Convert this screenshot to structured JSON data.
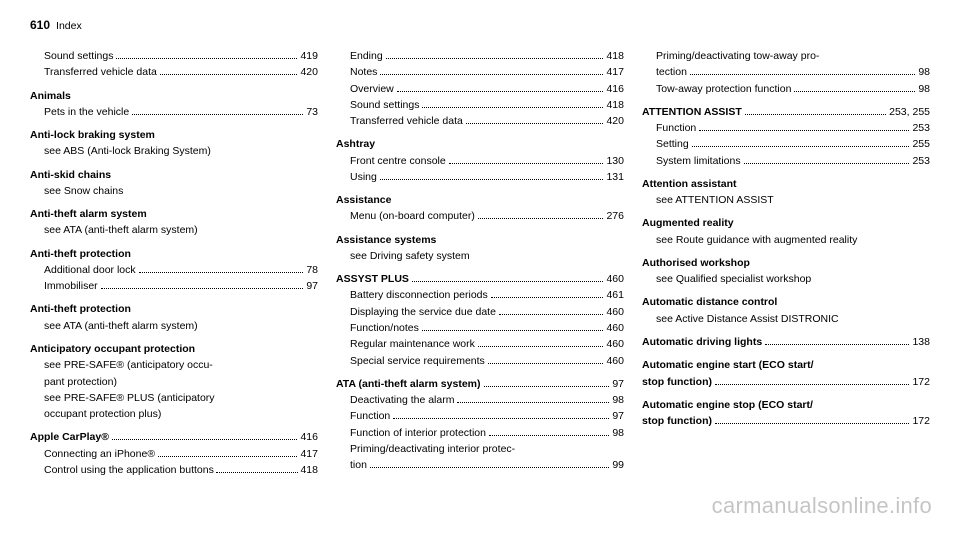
{
  "header": {
    "page_num": "610",
    "label": "Index"
  },
  "watermark": "carmanualsonline.info",
  "col1": [
    {
      "t": "line",
      "cls": "sub",
      "label": "Sound settings",
      "page": "419"
    },
    {
      "t": "line",
      "cls": "sub",
      "label": "Transferred vehicle data",
      "page": "420"
    },
    {
      "t": "spacer"
    },
    {
      "t": "head",
      "label": "Animals"
    },
    {
      "t": "line",
      "cls": "sub",
      "label": "Pets in the vehicle",
      "page": "73"
    },
    {
      "t": "spacer"
    },
    {
      "t": "head",
      "label": "Anti-lock braking system"
    },
    {
      "t": "see",
      "label": "see ABS (Anti-lock Braking System)"
    },
    {
      "t": "spacer"
    },
    {
      "t": "head",
      "label": "Anti-skid chains"
    },
    {
      "t": "see",
      "label": "see Snow chains"
    },
    {
      "t": "spacer"
    },
    {
      "t": "head",
      "label": "Anti-theft alarm system"
    },
    {
      "t": "see",
      "label": "see ATA (anti-theft alarm system)"
    },
    {
      "t": "spacer"
    },
    {
      "t": "head",
      "label": "Anti-theft protection"
    },
    {
      "t": "line",
      "cls": "sub",
      "label": "Additional door lock",
      "page": "78"
    },
    {
      "t": "line",
      "cls": "sub",
      "label": "Immobiliser",
      "page": "97"
    },
    {
      "t": "spacer"
    },
    {
      "t": "head",
      "label": "Anti-theft protection"
    },
    {
      "t": "see",
      "label": "see ATA (anti-theft alarm system)"
    },
    {
      "t": "spacer"
    },
    {
      "t": "head",
      "label": "Anticipatory occupant protection"
    },
    {
      "t": "see",
      "label": "see PRE-SAFE® (anticipatory occu-"
    },
    {
      "t": "see",
      "label": "pant protection)"
    },
    {
      "t": "see",
      "label": "see PRE-SAFE® PLUS (anticipatory"
    },
    {
      "t": "see",
      "label": "occupant protection plus)"
    },
    {
      "t": "spacer"
    },
    {
      "t": "line",
      "cls": "",
      "bold": true,
      "label": "Apple CarPlay®",
      "page": "416"
    },
    {
      "t": "line",
      "cls": "sub",
      "label": "Connecting an iPhone®",
      "page": "417"
    },
    {
      "t": "line",
      "cls": "sub",
      "label": "Control using the application buttons",
      "page": "418",
      "tight": true
    }
  ],
  "col2": [
    {
      "t": "line",
      "cls": "sub",
      "label": "Ending",
      "page": "418"
    },
    {
      "t": "line",
      "cls": "sub",
      "label": "Notes",
      "page": "417"
    },
    {
      "t": "line",
      "cls": "sub",
      "label": "Overview",
      "page": "416"
    },
    {
      "t": "line",
      "cls": "sub",
      "label": "Sound settings",
      "page": "418"
    },
    {
      "t": "line",
      "cls": "sub",
      "label": "Transferred vehicle data",
      "page": "420"
    },
    {
      "t": "spacer"
    },
    {
      "t": "head",
      "label": "Ashtray"
    },
    {
      "t": "line",
      "cls": "sub",
      "label": "Front centre console",
      "page": "130"
    },
    {
      "t": "line",
      "cls": "sub",
      "label": "Using",
      "page": "131"
    },
    {
      "t": "spacer"
    },
    {
      "t": "head",
      "label": "Assistance"
    },
    {
      "t": "line",
      "cls": "sub",
      "label": "Menu (on-board computer)",
      "page": "276"
    },
    {
      "t": "spacer"
    },
    {
      "t": "head",
      "label": "Assistance systems"
    },
    {
      "t": "see",
      "label": "see Driving safety system"
    },
    {
      "t": "spacer"
    },
    {
      "t": "line",
      "cls": "",
      "bold": true,
      "label": "ASSYST PLUS",
      "page": "460"
    },
    {
      "t": "line",
      "cls": "sub",
      "label": "Battery disconnection periods",
      "page": "461"
    },
    {
      "t": "line",
      "cls": "sub",
      "label": "Displaying the service due date",
      "page": "460"
    },
    {
      "t": "line",
      "cls": "sub",
      "label": "Function/notes",
      "page": "460"
    },
    {
      "t": "line",
      "cls": "sub",
      "label": "Regular maintenance work",
      "page": "460"
    },
    {
      "t": "line",
      "cls": "sub",
      "label": "Special service requirements",
      "page": "460"
    },
    {
      "t": "spacer"
    },
    {
      "t": "line",
      "cls": "",
      "bold": true,
      "label": "ATA (anti-theft alarm system)",
      "page": "97"
    },
    {
      "t": "line",
      "cls": "sub",
      "label": "Deactivating the alarm",
      "page": "98"
    },
    {
      "t": "line",
      "cls": "sub",
      "label": "Function",
      "page": "97"
    },
    {
      "t": "line",
      "cls": "sub",
      "label": "Function of interior protection",
      "page": "98"
    },
    {
      "t": "wrap",
      "cls": "sub",
      "label1": "Priming/deactivating interior protec-",
      "label2": "tion",
      "page": "99"
    }
  ],
  "col3": [
    {
      "t": "wrap",
      "cls": "sub",
      "label1": "Priming/deactivating tow-away pro-",
      "label2": "tection",
      "page": "98"
    },
    {
      "t": "line",
      "cls": "sub",
      "label": "Tow-away protection function",
      "page": "98"
    },
    {
      "t": "spacer"
    },
    {
      "t": "line",
      "cls": "",
      "bold": true,
      "label": "ATTENTION ASSIST",
      "page": "253, 255"
    },
    {
      "t": "line",
      "cls": "sub",
      "label": "Function",
      "page": "253"
    },
    {
      "t": "line",
      "cls": "sub",
      "label": "Setting",
      "page": "255"
    },
    {
      "t": "line",
      "cls": "sub",
      "label": "System limitations",
      "page": "253"
    },
    {
      "t": "spacer"
    },
    {
      "t": "head",
      "label": "Attention assistant"
    },
    {
      "t": "see",
      "label": "see ATTENTION ASSIST"
    },
    {
      "t": "spacer"
    },
    {
      "t": "head",
      "label": "Augmented reality"
    },
    {
      "t": "see",
      "label": "see Route guidance with augmented reality"
    },
    {
      "t": "spacer"
    },
    {
      "t": "head",
      "label": "Authorised workshop"
    },
    {
      "t": "see",
      "label": "see Qualified specialist workshop"
    },
    {
      "t": "spacer"
    },
    {
      "t": "head",
      "label": "Automatic distance control"
    },
    {
      "t": "see",
      "label": "see Active Distance Assist DISTRONIC"
    },
    {
      "t": "spacer"
    },
    {
      "t": "line",
      "cls": "",
      "bold": true,
      "label": "Automatic driving lights",
      "page": "138"
    },
    {
      "t": "spacer"
    },
    {
      "t": "wraphead",
      "bold": true,
      "label1": "Automatic engine start (ECO start/",
      "label2": "stop function)",
      "page": "172"
    },
    {
      "t": "spacer"
    },
    {
      "t": "wraphead",
      "bold": true,
      "label1": "Automatic engine stop (ECO start/",
      "label2": "stop function)",
      "page": "172"
    }
  ]
}
